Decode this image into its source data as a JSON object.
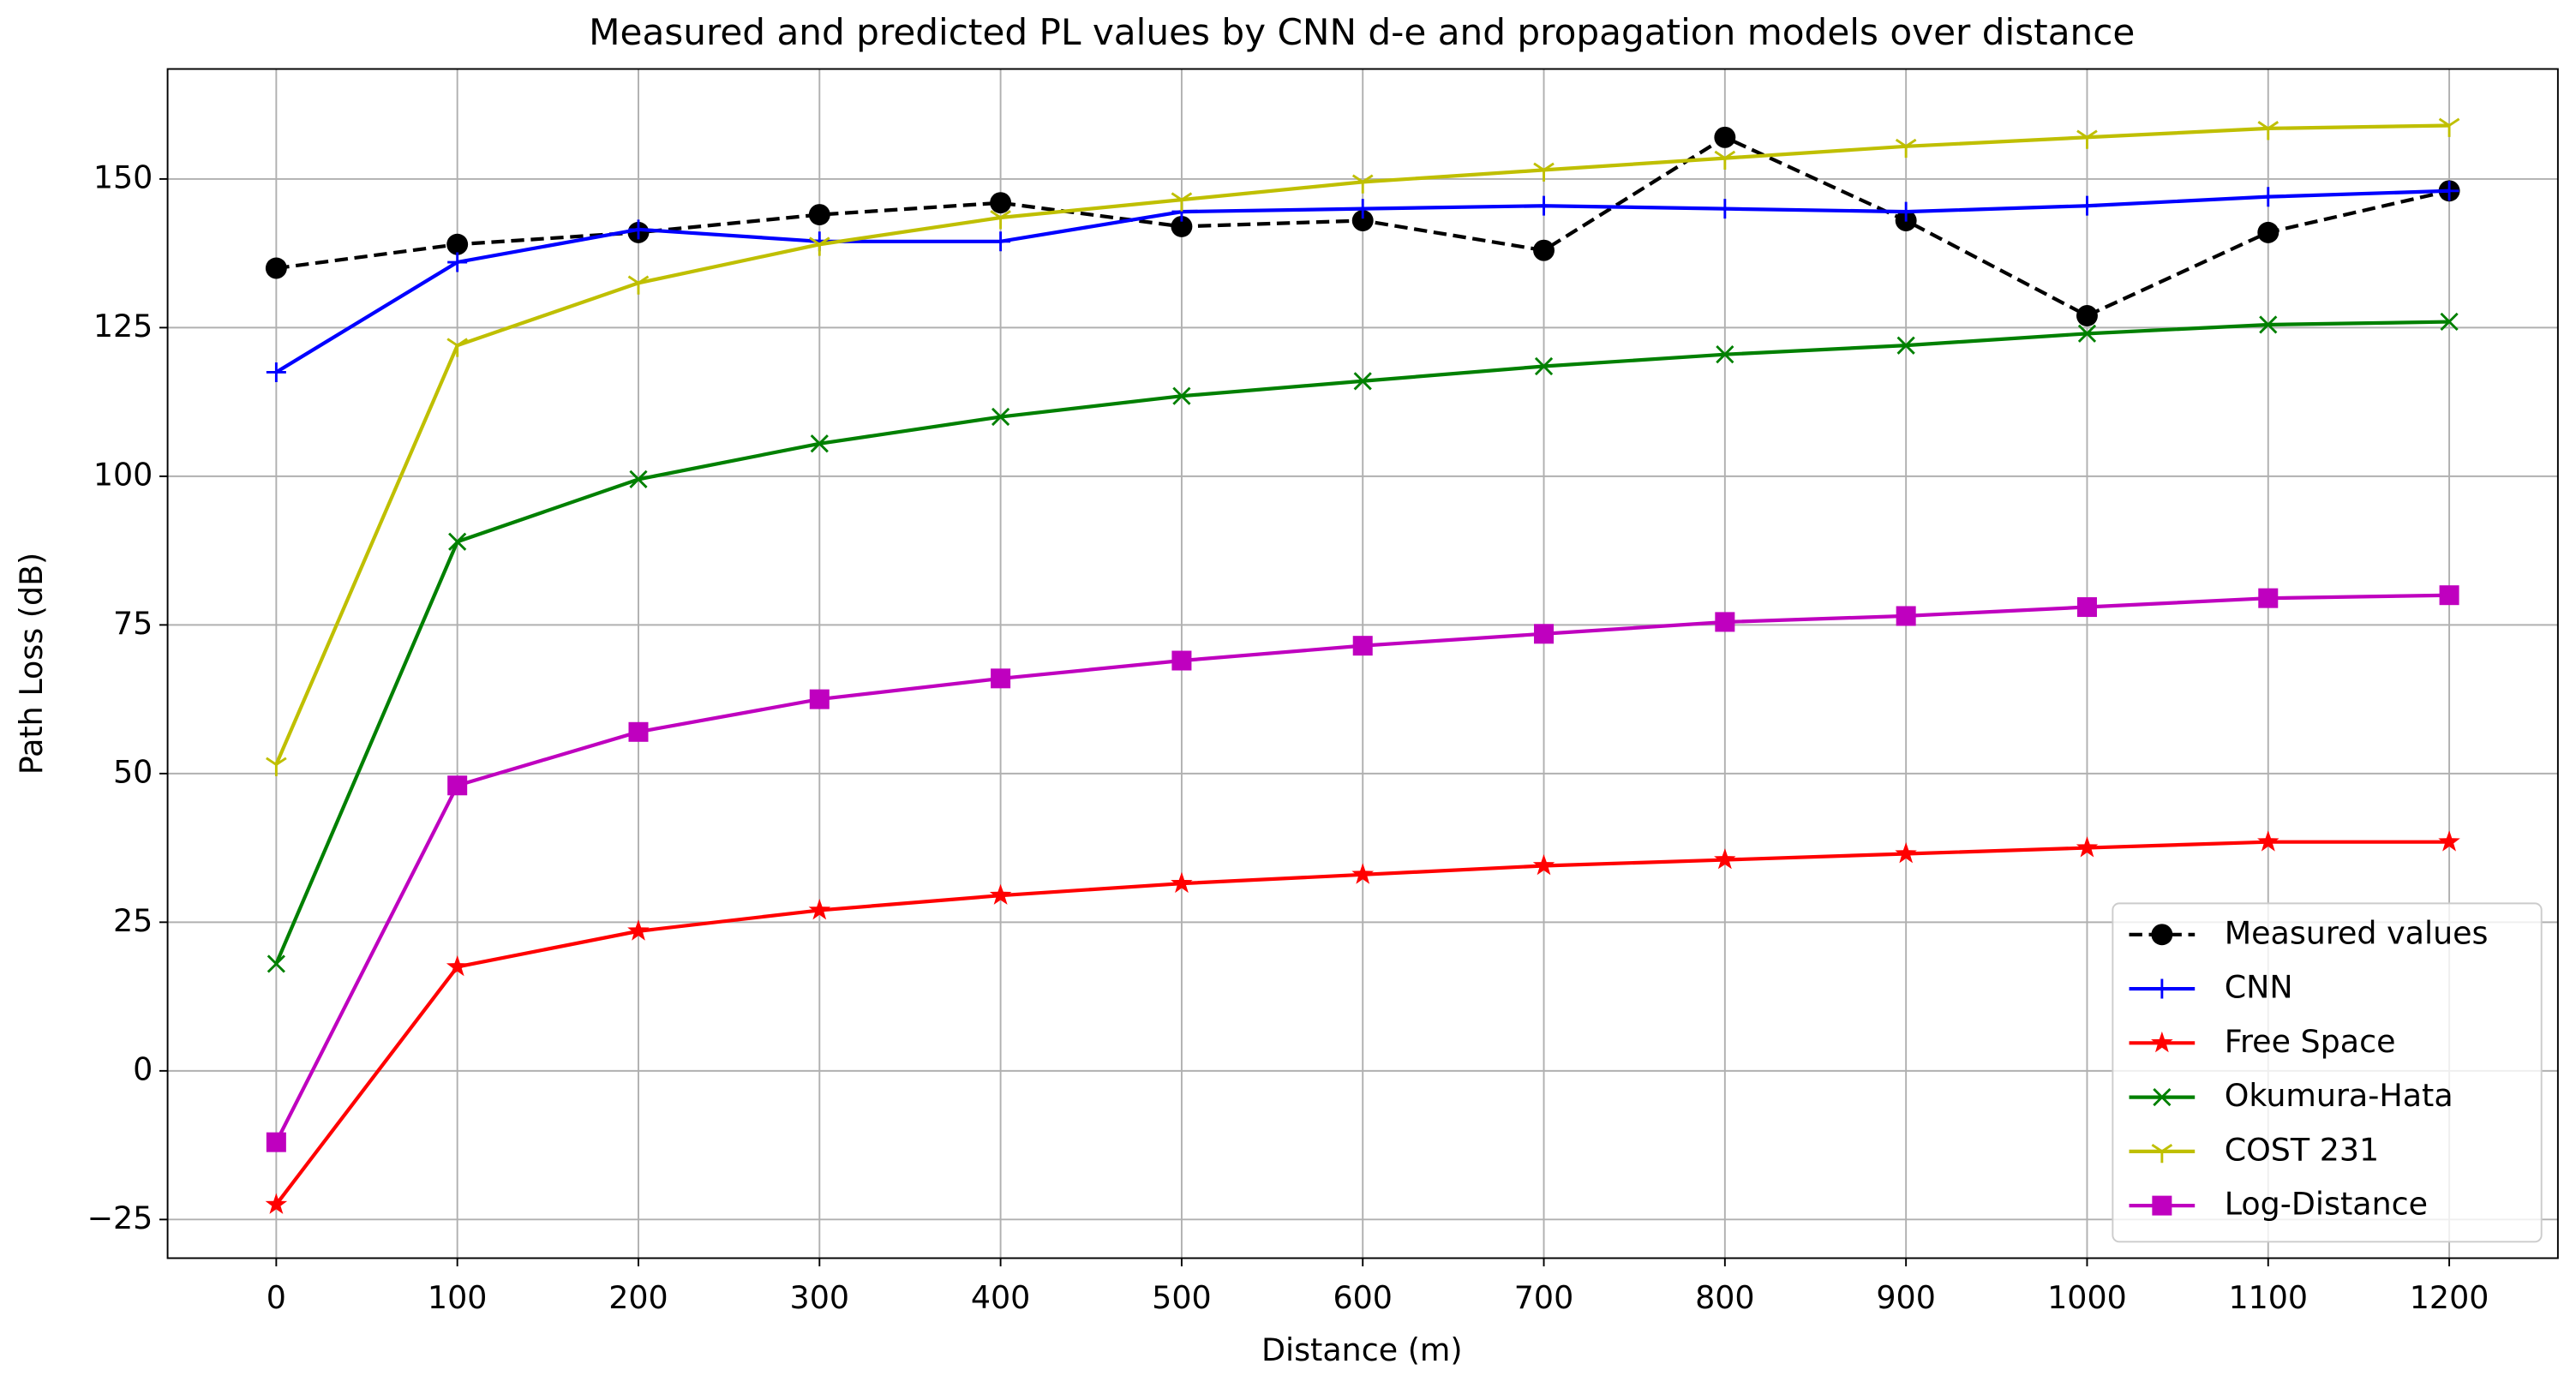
{
  "chart_data": {
    "type": "line",
    "title": "Measured and predicted PL values by CNN d-e and propagation models over distance",
    "x_label": "Distance (m)",
    "y_label": "Path Loss (dB)",
    "x": [
      0,
      100,
      200,
      300,
      400,
      500,
      600,
      700,
      800,
      900,
      1000,
      1100,
      1200
    ],
    "series": [
      {
        "name": "Measured values",
        "color": "#000000",
        "marker": "circle",
        "dashed": true,
        "values": [
          135,
          139,
          141,
          144,
          146,
          142,
          143,
          138,
          157,
          143,
          127,
          141,
          148
        ]
      },
      {
        "name": "CNN",
        "color": "#0000ff",
        "marker": "plus",
        "dashed": false,
        "values": [
          117.5,
          136,
          141.5,
          139.5,
          139.5,
          144.5,
          145,
          145.5,
          145,
          144.5,
          145.5,
          147,
          148
        ]
      },
      {
        "name": "Free Space",
        "color": "#ff0000",
        "marker": "star",
        "dashed": false,
        "values": [
          -22.5,
          17.5,
          23.5,
          27,
          29.5,
          31.5,
          33,
          34.5,
          35.5,
          36.5,
          37.5,
          38.5,
          38.5
        ]
      },
      {
        "name": "Okumura-Hata",
        "color": "#008000",
        "marker": "x",
        "dashed": false,
        "values": [
          18,
          89,
          99.5,
          105.5,
          110,
          113.5,
          116,
          118.5,
          120.5,
          122,
          124,
          125.5,
          126
        ]
      },
      {
        "name": "COST 231",
        "color": "#bfbf00",
        "marker": "tri_down",
        "dashed": false,
        "values": [
          51.5,
          122,
          132.5,
          139,
          143.5,
          146.5,
          149.5,
          151.5,
          153.5,
          155.5,
          157,
          158.5,
          159
        ]
      },
      {
        "name": "Log-Distance",
        "color": "#bf00bf",
        "marker": "square",
        "dashed": false,
        "values": [
          -12,
          48,
          57,
          62.5,
          66,
          69,
          71.5,
          73.5,
          75.5,
          76.5,
          78,
          79.5,
          80
        ]
      }
    ],
    "xlim": [
      -60,
      1260
    ],
    "ylim": [
      -31.5,
      168.5
    ],
    "xticks": [
      0,
      100,
      200,
      300,
      400,
      500,
      600,
      700,
      800,
      900,
      1000,
      1100,
      1200
    ],
    "yticks": [
      {
        "value": -25,
        "label": "−25"
      },
      0,
      25,
      50,
      75,
      100,
      125,
      150
    ],
    "grid": true,
    "legend": "lower right"
  }
}
